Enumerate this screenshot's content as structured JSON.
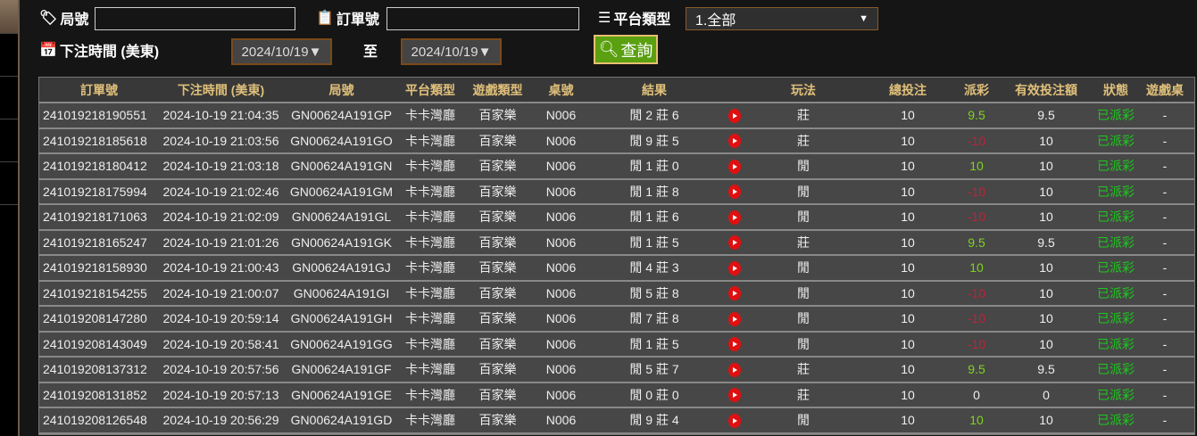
{
  "filters": {
    "round_label": "局號",
    "round_value": "",
    "order_label": "訂單號",
    "order_value": "",
    "platform_label": "平台類型",
    "platform_value": "1.全部",
    "time_label": "下注時間 (美東)",
    "date_from": "2024/10/19▼",
    "to_label": "至",
    "date_to": "2024/10/19▼",
    "search_label": "查詢"
  },
  "table": {
    "headers": [
      "訂單號",
      "下注時間 (美東)",
      "局號",
      "平台類型",
      "遊戲類型",
      "桌號",
      "結果",
      "",
      "玩法",
      "總投注",
      "派彩",
      "有效投注額",
      "狀態",
      "遊戲桌"
    ],
    "rows": [
      [
        "241019218190551",
        "2024-10-19 21:04:35",
        "GN00624A191GP",
        "卡卡灣廳",
        "百家樂",
        "N006",
        "閒 2 莊 6",
        "",
        "莊",
        "10",
        "9.5",
        "9.5",
        "已派彩",
        "-"
      ],
      [
        "241019218185618",
        "2024-10-19 21:03:56",
        "GN00624A191GO",
        "卡卡灣廳",
        "百家樂",
        "N006",
        "閒 9 莊 5",
        "",
        "莊",
        "10",
        "-10",
        "10",
        "已派彩",
        "-"
      ],
      [
        "241019218180412",
        "2024-10-19 21:03:18",
        "GN00624A191GN",
        "卡卡灣廳",
        "百家樂",
        "N006",
        "閒 1 莊 0",
        "",
        "閒",
        "10",
        "10",
        "10",
        "已派彩",
        "-"
      ],
      [
        "241019218175994",
        "2024-10-19 21:02:46",
        "GN00624A191GM",
        "卡卡灣廳",
        "百家樂",
        "N006",
        "閒 1 莊 8",
        "",
        "閒",
        "10",
        "-10",
        "10",
        "已派彩",
        "-"
      ],
      [
        "241019218171063",
        "2024-10-19 21:02:09",
        "GN00624A191GL",
        "卡卡灣廳",
        "百家樂",
        "N006",
        "閒 1 莊 6",
        "",
        "閒",
        "10",
        "-10",
        "10",
        "已派彩",
        "-"
      ],
      [
        "241019218165247",
        "2024-10-19 21:01:26",
        "GN00624A191GK",
        "卡卡灣廳",
        "百家樂",
        "N006",
        "閒 1 莊 5",
        "",
        "莊",
        "10",
        "9.5",
        "9.5",
        "已派彩",
        "-"
      ],
      [
        "241019218158930",
        "2024-10-19 21:00:43",
        "GN00624A191GJ",
        "卡卡灣廳",
        "百家樂",
        "N006",
        "閒 4 莊 3",
        "",
        "閒",
        "10",
        "10",
        "10",
        "已派彩",
        "-"
      ],
      [
        "241019218154255",
        "2024-10-19 21:00:07",
        "GN00624A191GI",
        "卡卡灣廳",
        "百家樂",
        "N006",
        "閒 5 莊 8",
        "",
        "閒",
        "10",
        "-10",
        "10",
        "已派彩",
        "-"
      ],
      [
        "241019208147280",
        "2024-10-19 20:59:14",
        "GN00624A191GH",
        "卡卡灣廳",
        "百家樂",
        "N006",
        "閒 7 莊 8",
        "",
        "閒",
        "10",
        "-10",
        "10",
        "已派彩",
        "-"
      ],
      [
        "241019208143049",
        "2024-10-19 20:58:41",
        "GN00624A191GG",
        "卡卡灣廳",
        "百家樂",
        "N006",
        "閒 1 莊 5",
        "",
        "閒",
        "10",
        "-10",
        "10",
        "已派彩",
        "-"
      ],
      [
        "241019208137312",
        "2024-10-19 20:57:56",
        "GN00624A191GF",
        "卡卡灣廳",
        "百家樂",
        "N006",
        "閒 5 莊 7",
        "",
        "莊",
        "10",
        "9.5",
        "9.5",
        "已派彩",
        "-"
      ],
      [
        "241019208131852",
        "2024-10-19 20:57:13",
        "GN00624A191GE",
        "卡卡灣廳",
        "百家樂",
        "N006",
        "閒 0 莊 0",
        "",
        "莊",
        "10",
        "0",
        "0",
        "已派彩",
        "-"
      ],
      [
        "241019208126548",
        "2024-10-19 20:56:29",
        "GN00624A191GD",
        "卡卡灣廳",
        "百家樂",
        "N006",
        "閒 9 莊 4",
        "",
        "閒",
        "10",
        "10",
        "10",
        "已派彩",
        "-"
      ]
    ]
  },
  "colors": {
    "positive": "#7ed321",
    "negative": "#c0203a",
    "status": "#1ec81e",
    "header_text": "#e0c07a",
    "search_button": "#5aa010"
  }
}
